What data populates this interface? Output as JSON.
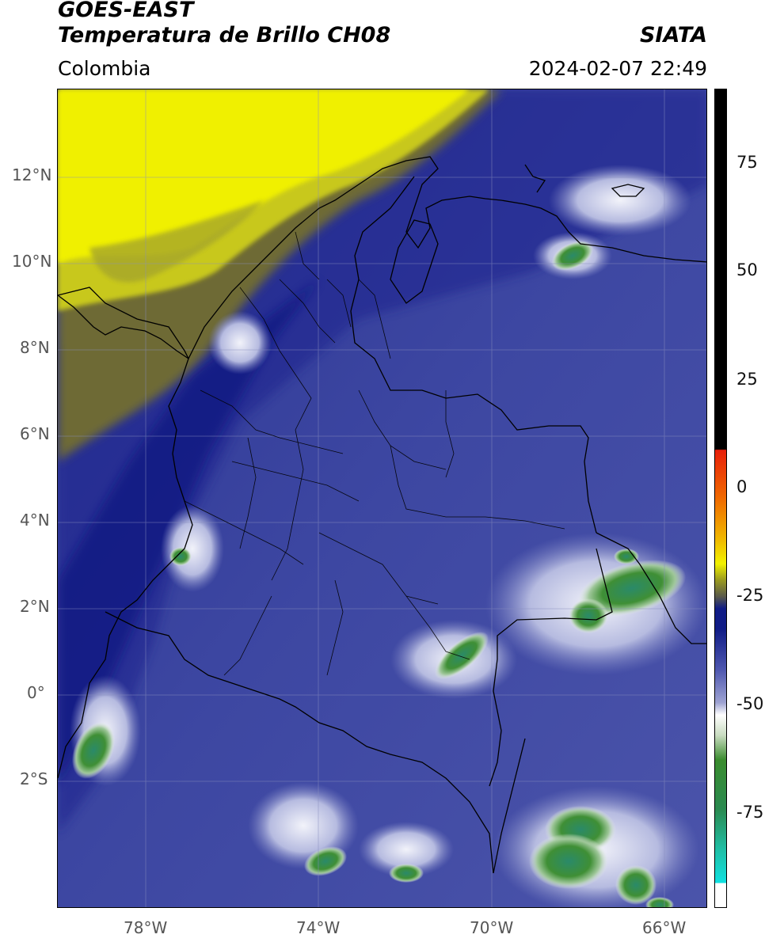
{
  "header": {
    "satellite": "GOES-EAST",
    "product": "Temperatura de Brillo CH08",
    "institution": "SIATA",
    "region": "Colombia",
    "timestamp": "2024-02-07 22:49"
  },
  "map": {
    "lat_labels": [
      "12°N",
      "10°N",
      "8°N",
      "6°N",
      "4°N",
      "2°N",
      "0°",
      "2°S"
    ],
    "lon_labels": [
      "78°W",
      "74°W",
      "70°W",
      "66°W"
    ]
  },
  "colorbar": {
    "ticks": [
      "75",
      "50",
      "25",
      "0",
      "-25",
      "-50",
      "-75"
    ],
    "colors": {
      "black": "#000000",
      "red": "#e8200a",
      "orange": "#f08a00",
      "yellow": "#f2f200",
      "olive": "#6f6f2a",
      "navy": "#101c86",
      "blue": "#4f58b0",
      "pale": "#d8dcee",
      "white": "#ffffff",
      "green": "#3a8c2e",
      "teal": "#1fbfa6",
      "cyan": "#10e0e0"
    }
  }
}
